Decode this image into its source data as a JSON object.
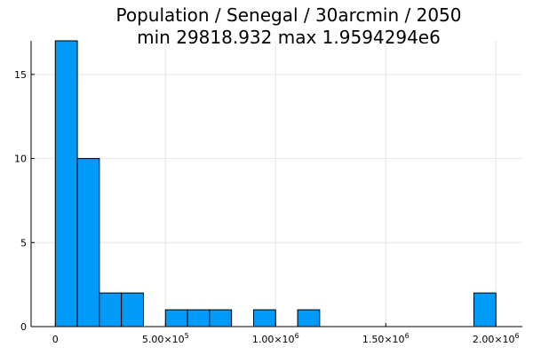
{
  "chart_data": {
    "type": "bar",
    "title_line1": "Population / Senegal / 30arcmin / 2050",
    "title_line2": "min 29818.932  max 1.9594294e6",
    "xlabel": "",
    "ylabel": "",
    "grid": true,
    "legend": "none",
    "bar_color": "#009af9",
    "bin_width": 100000,
    "bins": [
      {
        "start": 0,
        "end": 100000,
        "count": 17
      },
      {
        "start": 100000,
        "end": 200000,
        "count": 10
      },
      {
        "start": 200000,
        "end": 300000,
        "count": 2
      },
      {
        "start": 300000,
        "end": 400000,
        "count": 2
      },
      {
        "start": 400000,
        "end": 500000,
        "count": 0
      },
      {
        "start": 500000,
        "end": 600000,
        "count": 1
      },
      {
        "start": 600000,
        "end": 700000,
        "count": 1
      },
      {
        "start": 700000,
        "end": 800000,
        "count": 1
      },
      {
        "start": 800000,
        "end": 900000,
        "count": 0
      },
      {
        "start": 900000,
        "end": 1000000,
        "count": 1
      },
      {
        "start": 1000000,
        "end": 1100000,
        "count": 0
      },
      {
        "start": 1100000,
        "end": 1200000,
        "count": 1
      },
      {
        "start": 1200000,
        "end": 1300000,
        "count": 0
      },
      {
        "start": 1300000,
        "end": 1400000,
        "count": 0
      },
      {
        "start": 1400000,
        "end": 1500000,
        "count": 0
      },
      {
        "start": 1500000,
        "end": 1600000,
        "count": 0
      },
      {
        "start": 1600000,
        "end": 1700000,
        "count": 0
      },
      {
        "start": 1700000,
        "end": 1800000,
        "count": 0
      },
      {
        "start": 1800000,
        "end": 1900000,
        "count": 0
      },
      {
        "start": 1900000,
        "end": 2000000,
        "count": 2
      }
    ],
    "xlim": [
      -110000,
      2120000
    ],
    "ylim": [
      0,
      17
    ],
    "x_ticks": [
      {
        "value": 0,
        "mantissa": "0",
        "exponent": ""
      },
      {
        "value": 500000,
        "mantissa": "5.00×10",
        "exponent": "5"
      },
      {
        "value": 1000000,
        "mantissa": "1.00×10",
        "exponent": "6"
      },
      {
        "value": 1500000,
        "mantissa": "1.50×10",
        "exponent": "6"
      },
      {
        "value": 2000000,
        "mantissa": "2.00×10",
        "exponent": "6"
      }
    ],
    "y_ticks": [
      {
        "value": 0,
        "label": "0"
      },
      {
        "value": 5,
        "label": "5"
      },
      {
        "value": 10,
        "label": "10"
      },
      {
        "value": 15,
        "label": "15"
      }
    ]
  }
}
